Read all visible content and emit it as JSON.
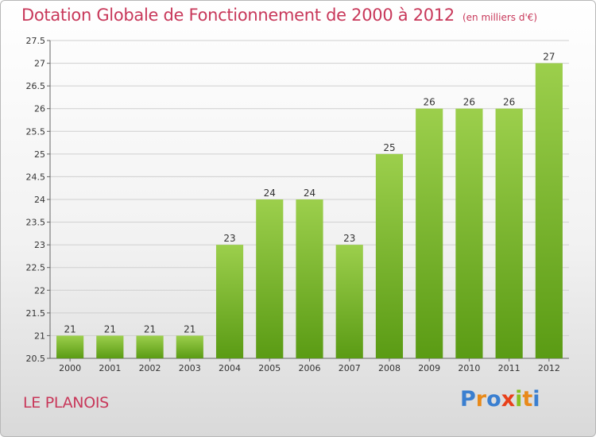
{
  "header": {
    "title": "Dotation Globale de Fonctionnement de 2000 à 2012",
    "subtitle": "(en milliers d'€)"
  },
  "footer": {
    "commune": "LE PLANOIS",
    "brand": "Proxiti"
  },
  "colors": {
    "title": "#c8385a",
    "bar_top": "#9ccf4c",
    "bar_bottom": "#5a9b14",
    "brand_letters": [
      "#3a7fd0",
      "#e88a1a",
      "#3a7fd0",
      "#e8401a",
      "#88c020",
      "#e88a1a",
      "#3a7fd0"
    ]
  },
  "chart_data": {
    "type": "bar",
    "title": "Dotation Globale de Fonctionnement de 2000 à 2012",
    "subtitle": "(en milliers d'€)",
    "categories": [
      "2000",
      "2001",
      "2002",
      "2003",
      "2004",
      "2005",
      "2006",
      "2007",
      "2008",
      "2009",
      "2010",
      "2011",
      "2012"
    ],
    "values": [
      21,
      21,
      21,
      21,
      23,
      24,
      24,
      23,
      25,
      26,
      26,
      26,
      27
    ],
    "data_labels": [
      "21",
      "21",
      "21",
      "21",
      "23",
      "24",
      "24",
      "23",
      "25",
      "26",
      "26",
      "26",
      "27"
    ],
    "ylim": [
      20.5,
      27.5
    ],
    "yticks": [
      20.5,
      21,
      21.5,
      22,
      22.5,
      23,
      23.5,
      24,
      24.5,
      25,
      25.5,
      26,
      26.5,
      27,
      27.5
    ],
    "ytick_labels": [
      "20.5",
      "21",
      "21.5",
      "22",
      "22.5",
      "23",
      "23.5",
      "24",
      "24.5",
      "25",
      "25.5",
      "26",
      "26.5",
      "27",
      "27.5"
    ],
    "grid": true,
    "legend": "none"
  }
}
